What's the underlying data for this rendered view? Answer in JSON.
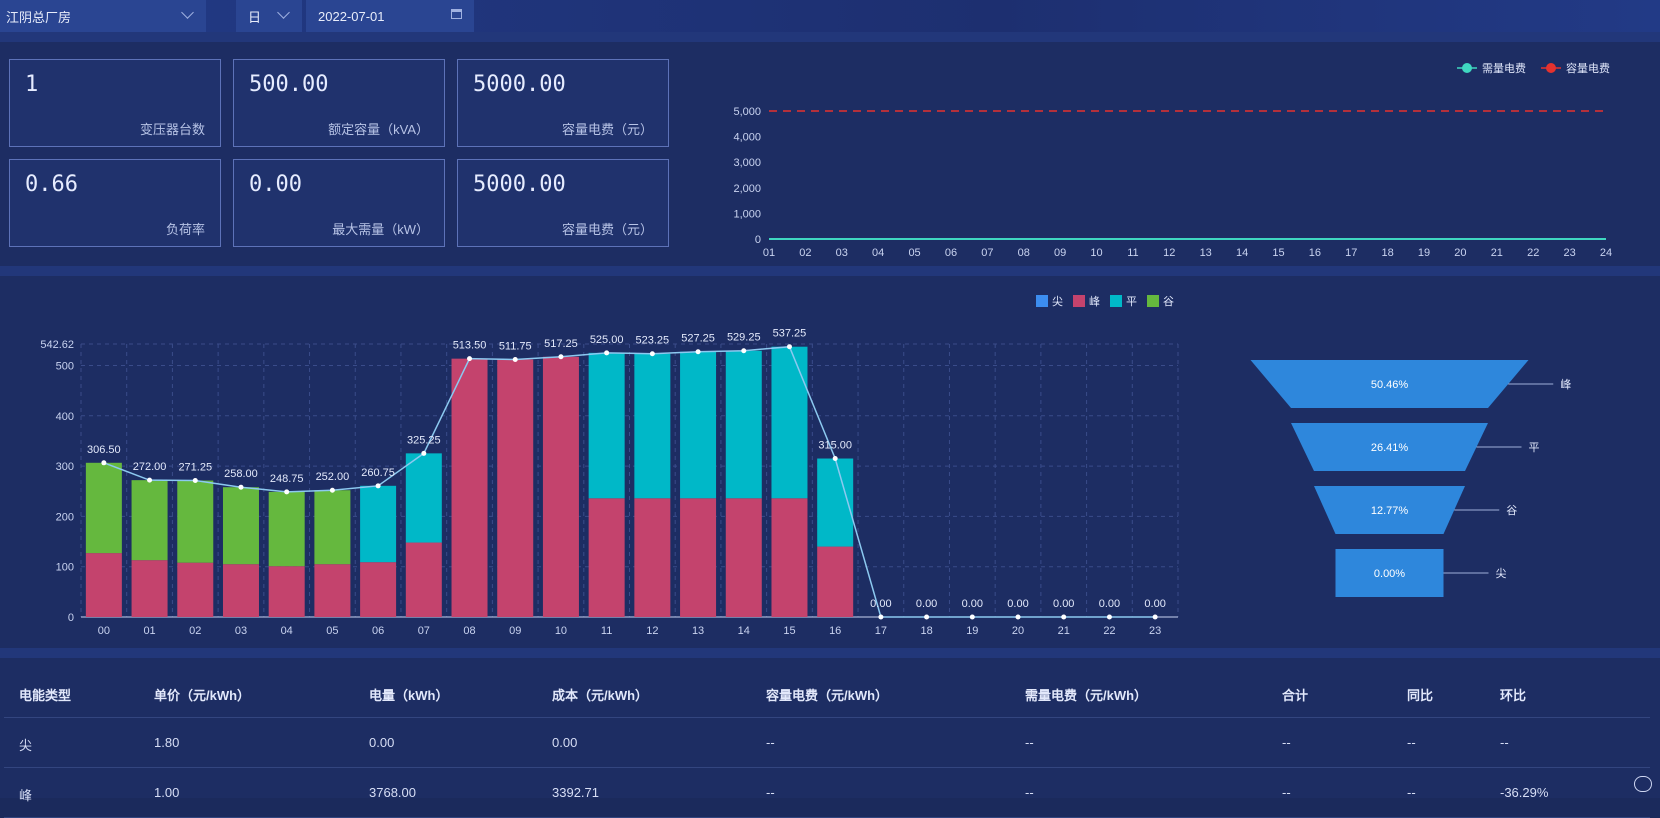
{
  "toolbar": {
    "site": "江阴总厂房",
    "period": "日",
    "date": "2022-07-01"
  },
  "cards": [
    {
      "value": "1",
      "label": "变压器台数"
    },
    {
      "value": "500.00",
      "label": "额定容量（kVA）"
    },
    {
      "value": "5000.00",
      "label": "容量电费（元）"
    },
    {
      "value": "0.66",
      "label": "负荷率"
    },
    {
      "value": "0.00",
      "label": "最大需量（kW）"
    },
    {
      "value": "5000.00",
      "label": "容量电费（元）"
    }
  ],
  "chart_data": [
    {
      "type": "line",
      "legend": [
        "需量电费",
        "容量电费"
      ],
      "legend_position": "top-right",
      "x": [
        "01",
        "02",
        "03",
        "04",
        "05",
        "06",
        "07",
        "08",
        "09",
        "10",
        "11",
        "12",
        "13",
        "14",
        "15",
        "16",
        "17",
        "18",
        "19",
        "20",
        "21",
        "22",
        "23",
        "24"
      ],
      "yticks": [
        "0",
        "1,000",
        "2,000",
        "3,000",
        "4,000",
        "5,000"
      ],
      "ylim": [
        0,
        5000
      ],
      "series": [
        {
          "name": "需量电费",
          "color": "#3fd7c0",
          "values": [
            0,
            0,
            0,
            0,
            0,
            0,
            0,
            0,
            0,
            0,
            0,
            0,
            0,
            0,
            0,
            0,
            0,
            0,
            0,
            0,
            0,
            0,
            0,
            0
          ]
        },
        {
          "name": "容量电费",
          "color": "#e5322e",
          "style": "dashed",
          "values": [
            5000,
            5000,
            5000,
            5000,
            5000,
            5000,
            5000,
            5000,
            5000,
            5000,
            5000,
            5000,
            5000,
            5000,
            5000,
            5000,
            5000,
            5000,
            5000,
            5000,
            5000,
            5000,
            5000,
            5000
          ]
        }
      ]
    },
    {
      "type": "bar",
      "stacked": true,
      "legend": [
        "尖",
        "峰",
        "平",
        "谷"
      ],
      "legend_position": "top-right",
      "categories": [
        "00",
        "01",
        "02",
        "03",
        "04",
        "05",
        "06",
        "07",
        "08",
        "09",
        "10",
        "11",
        "12",
        "13",
        "14",
        "15",
        "16",
        "17",
        "18",
        "19",
        "20",
        "21",
        "22",
        "23"
      ],
      "yticks": [
        "0",
        "100",
        "200",
        "300",
        "400",
        "500"
      ],
      "ymax_label": "542.62",
      "ylim": [
        0,
        542.62
      ],
      "series": [
        {
          "name": "尖",
          "color": "#3c8df0",
          "values": [
            0,
            0,
            0,
            0,
            0,
            0,
            0,
            0,
            0,
            0,
            0,
            0,
            0,
            0,
            0,
            0,
            0,
            0,
            0,
            0,
            0,
            0,
            0,
            0
          ]
        },
        {
          "name": "峰",
          "color": "#c4436d",
          "values": [
            127,
            113,
            108,
            105,
            101,
            105,
            109,
            148,
            513.5,
            511.75,
            517.25,
            236,
            236,
            236,
            236,
            236,
            140,
            0,
            0,
            0,
            0,
            0,
            0,
            0
          ]
        },
        {
          "name": "平",
          "color": "#00b8c8",
          "values": [
            0,
            0,
            0,
            0,
            0,
            0,
            151.75,
            177.25,
            0,
            0,
            0,
            289,
            287.25,
            291.25,
            293.25,
            301.25,
            175,
            0,
            0,
            0,
            0,
            0,
            0,
            0
          ]
        },
        {
          "name": "谷",
          "color": "#65b83e",
          "values": [
            179.5,
            159,
            163.25,
            153,
            147.75,
            147,
            0,
            0,
            0,
            0,
            0,
            0,
            0,
            0,
            0,
            0,
            0,
            0,
            0,
            0,
            0,
            0,
            0,
            0
          ]
        }
      ],
      "line": {
        "color": "#8cc9f0",
        "values": [
          306.5,
          272,
          271.25,
          258,
          248.75,
          252,
          260.75,
          325.25,
          513.5,
          511.75,
          517.25,
          525,
          523.25,
          527.25,
          529.25,
          537.25,
          315,
          0,
          0,
          0,
          0,
          0,
          0,
          0
        ],
        "labels": [
          "306.50",
          "272.00",
          "271.25",
          "258.00",
          "248.75",
          "252.00",
          "260.75",
          "325.25",
          "513.50",
          "511.75",
          "517.25",
          "525.00",
          "523.25",
          "527.25",
          "529.25",
          "537.25",
          "315.00",
          "0.00",
          "0.00",
          "0.00",
          "0.00",
          "0.00",
          "0.00",
          "0.00"
        ]
      }
    },
    {
      "type": "funnel",
      "color": "#2e87dc",
      "items": [
        {
          "name": "峰",
          "value": 50.46,
          "label": "50.46%"
        },
        {
          "name": "平",
          "value": 26.41,
          "label": "26.41%"
        },
        {
          "name": "谷",
          "value": 12.77,
          "label": "12.77%"
        },
        {
          "name": "尖",
          "value": 0.0,
          "label": "0.00%"
        }
      ]
    }
  ],
  "table": {
    "headers": [
      "电能类型",
      "单价（元/kWh）",
      "电量（kWh）",
      "成本（元/kWh）",
      "容量电费（元/kWh）",
      "需量电费（元/kWh）",
      "合计",
      "同比",
      "环比"
    ],
    "rows": [
      [
        "尖",
        "1.80",
        "0.00",
        "0.00",
        "--",
        "--",
        "--",
        "--",
        "--"
      ],
      [
        "峰",
        "1.00",
        "3768.00",
        "3392.71",
        "--",
        "--",
        "--",
        "--",
        "-36.29%"
      ]
    ]
  }
}
